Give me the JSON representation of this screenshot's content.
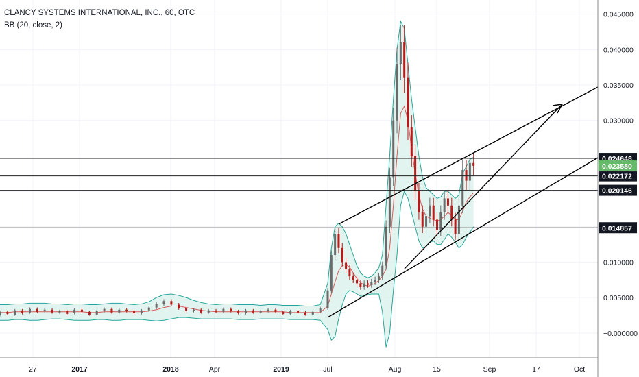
{
  "legend": {
    "symbol_line": "CLANCY SYSTEMS INTERNATIONAL, INC., 60, OTC",
    "indicator_line": "BB (20, close, 2)"
  },
  "colors": {
    "candle_up": "#6b6b6b",
    "candle_down": "#b71c1c",
    "bb_band": "#26a69a",
    "bb_fill": "#d8f0ea",
    "bb_basis": "#d65a5a",
    "drawing_line": "#000000",
    "last_price_badge": "#66bb6a",
    "axis_text": "#131722",
    "grid": "#f0f3fa"
  },
  "chart_data": {
    "type": "candlestick",
    "title": "",
    "x_axis": {
      "tick_labels": [
        "27",
        "2017",
        "2018",
        "Apr",
        "2019",
        "Jul",
        "Aug",
        "15",
        "Sep",
        "17",
        "Oct"
      ],
      "bold_ticks": [
        "2017",
        "2018",
        "2019"
      ]
    },
    "y_axis": {
      "position": "right",
      "range": [
        -0.0035,
        0.047
      ],
      "tick_values": [
        -0.0,
        0.005,
        0.01,
        0.015,
        0.02,
        0.025,
        0.03,
        0.035,
        0.04,
        0.045
      ],
      "tick_labels": [
        "−0.000000",
        "0.005000",
        "0.010000",
        "0.015000",
        "0.020000",
        "0.025000",
        "0.030000",
        "0.035000",
        "0.040000",
        "0.045000"
      ]
    },
    "grid": true,
    "series": [
      {
        "kind": "price",
        "points": [
          [
            0.0025,
            0.003
          ],
          [
            0.003,
            0.0027
          ],
          [
            0.0026,
            0.0032
          ],
          [
            0.0032,
            0.0028
          ],
          [
            0.0029,
            0.0034
          ],
          [
            0.0034,
            0.003
          ],
          [
            0.0031,
            0.0033
          ],
          [
            0.0033,
            0.0029
          ],
          [
            0.0029,
            0.0031
          ],
          [
            0.0031,
            0.0027
          ],
          [
            0.0028,
            0.0033
          ],
          [
            0.0033,
            0.003
          ],
          [
            0.003,
            0.0026
          ],
          [
            0.0026,
            0.0031
          ],
          [
            0.0031,
            0.0034
          ],
          [
            0.0034,
            0.0029
          ],
          [
            0.0029,
            0.0033
          ],
          [
            0.0033,
            0.0031
          ],
          [
            0.0031,
            0.0028
          ],
          [
            0.0028,
            0.0032
          ],
          [
            0.0032,
            0.0036
          ],
          [
            0.0036,
            0.0041
          ],
          [
            0.0041,
            0.0045
          ],
          [
            0.0045,
            0.004
          ],
          [
            0.004,
            0.0035
          ],
          [
            0.0035,
            0.0031
          ],
          [
            0.0031,
            0.0033
          ],
          [
            0.0033,
            0.0029
          ],
          [
            0.0029,
            0.0032
          ],
          [
            0.0032,
            0.003
          ],
          [
            0.003,
            0.0034
          ],
          [
            0.0034,
            0.0031
          ],
          [
            0.0031,
            0.0028
          ],
          [
            0.0028,
            0.0032
          ],
          [
            0.0032,
            0.0029
          ],
          [
            0.0029,
            0.0031
          ],
          [
            0.0031,
            0.0033
          ],
          [
            0.0033,
            0.003
          ],
          [
            0.003,
            0.0027
          ],
          [
            0.0027,
            0.0031
          ],
          [
            0.0031,
            0.0029
          ],
          [
            0.0029,
            0.0026
          ],
          [
            0.0026,
            0.003
          ],
          [
            0.003,
            0.0035
          ],
          [
            0.0035,
            0.006
          ],
          [
            0.006,
            0.011
          ],
          [
            0.011,
            0.014
          ],
          [
            0.014,
            0.012
          ],
          [
            0.012,
            0.01
          ],
          [
            0.01,
            0.009
          ],
          [
            0.009,
            0.008
          ],
          [
            0.008,
            0.0075
          ],
          [
            0.0075,
            0.007
          ],
          [
            0.007,
            0.0065
          ],
          [
            0.0065,
            0.007
          ],
          [
            0.007,
            0.0068
          ],
          [
            0.0068,
            0.0072
          ],
          [
            0.0072,
            0.0075
          ],
          [
            0.0075,
            0.008
          ],
          [
            0.008,
            0.0095
          ],
          [
            0.0095,
            0.015
          ],
          [
            0.015,
            0.022
          ],
          [
            0.022,
            0.03
          ],
          [
            0.03,
            0.038
          ],
          [
            0.038,
            0.041
          ],
          [
            0.041,
            0.036
          ],
          [
            0.036,
            0.029
          ],
          [
            0.029,
            0.025
          ],
          [
            0.025,
            0.02
          ],
          [
            0.02,
            0.017
          ],
          [
            0.017,
            0.015
          ],
          [
            0.015,
            0.0165
          ],
          [
            0.0165,
            0.018
          ],
          [
            0.018,
            0.016
          ],
          [
            0.016,
            0.0145
          ],
          [
            0.0145,
            0.017
          ],
          [
            0.017,
            0.019
          ],
          [
            0.019,
            0.018
          ],
          [
            0.018,
            0.016
          ],
          [
            0.016,
            0.014
          ],
          [
            0.014,
            0.018
          ],
          [
            0.018,
            0.023
          ],
          [
            0.023,
            0.0215
          ],
          [
            0.0215,
            0.024
          ],
          [
            0.024,
            0.0236
          ]
        ]
      },
      {
        "kind": "bollinger_bands",
        "name": "BB (20, close, 2)",
        "upper": [
          0.004,
          0.004,
          0.0041,
          0.0041,
          0.0042,
          0.0042,
          0.0042,
          0.0041,
          0.0041,
          0.004,
          0.0041,
          0.0041,
          0.004,
          0.004,
          0.0041,
          0.0042,
          0.0042,
          0.0041,
          0.004,
          0.0041,
          0.0044,
          0.005,
          0.0054,
          0.0055,
          0.0053,
          0.005,
          0.0046,
          0.0043,
          0.0041,
          0.004,
          0.0041,
          0.0041,
          0.004,
          0.004,
          0.004,
          0.0039,
          0.004,
          0.004,
          0.0039,
          0.0039,
          0.0039,
          0.0038,
          0.0038,
          0.004,
          0.007,
          0.012,
          0.015,
          0.0155,
          0.015,
          0.014,
          0.0125,
          0.011,
          0.0095,
          0.0085,
          0.008,
          0.0078,
          0.008,
          0.0085,
          0.0092,
          0.011,
          0.018,
          0.025,
          0.033,
          0.04,
          0.044,
          0.043,
          0.038,
          0.033,
          0.029,
          0.025,
          0.022,
          0.0205,
          0.02,
          0.0195,
          0.019,
          0.0192,
          0.02,
          0.02,
          0.0195,
          0.019,
          0.0195,
          0.0225,
          0.0235,
          0.0245,
          0.0248
        ],
        "lower": [
          0.0018,
          0.0018,
          0.0019,
          0.0019,
          0.0018,
          0.0018,
          0.0019,
          0.002,
          0.002,
          0.0019,
          0.0018,
          0.0018,
          0.0018,
          0.0019,
          0.0019,
          0.0018,
          0.0018,
          0.0019,
          0.0019,
          0.0019,
          0.0018,
          0.0017,
          0.0018,
          0.002,
          0.0022,
          0.0022,
          0.0021,
          0.002,
          0.002,
          0.002,
          0.002,
          0.002,
          0.0019,
          0.0019,
          0.0019,
          0.002,
          0.002,
          0.002,
          0.002,
          0.0019,
          0.0019,
          0.0019,
          0.0019,
          0.0018,
          0.0005,
          -0.001,
          -0.0005,
          0.002,
          0.004,
          0.0055,
          0.006,
          0.0058,
          0.0055,
          0.0052,
          0.0052,
          0.0054,
          0.0055,
          0.0055,
          0.0055,
          0.003,
          -0.002,
          0.0,
          0.006,
          0.011,
          0.018,
          0.02,
          0.019,
          0.017,
          0.015,
          0.013,
          0.012,
          0.0122,
          0.0128,
          0.013,
          0.0125,
          0.0125,
          0.0132,
          0.014,
          0.0135,
          0.0128,
          0.012,
          0.0125,
          0.0135,
          0.0142,
          0.015
        ],
        "basis": [
          0.0029,
          0.0029,
          0.003,
          0.003,
          0.003,
          0.003,
          0.003,
          0.003,
          0.003,
          0.003,
          0.003,
          0.003,
          0.0029,
          0.0029,
          0.003,
          0.003,
          0.003,
          0.003,
          0.003,
          0.003,
          0.0031,
          0.0033,
          0.0036,
          0.0038,
          0.0038,
          0.0036,
          0.0034,
          0.0032,
          0.0031,
          0.003,
          0.003,
          0.003,
          0.003,
          0.003,
          0.003,
          0.003,
          0.003,
          0.003,
          0.003,
          0.0029,
          0.0029,
          0.0029,
          0.0029,
          0.0029,
          0.0038,
          0.0055,
          0.0072,
          0.0088,
          0.0095,
          0.0097,
          0.0093,
          0.0085,
          0.0077,
          0.0071,
          0.0068,
          0.0066,
          0.0068,
          0.007,
          0.0074,
          0.008,
          0.009,
          0.012,
          0.018,
          0.025,
          0.031,
          0.032,
          0.03,
          0.026,
          0.0225,
          0.0195,
          0.0175,
          0.0165,
          0.0162,
          0.016,
          0.0158,
          0.016,
          0.0165,
          0.017,
          0.0166,
          0.016,
          0.016,
          0.0172,
          0.0185,
          0.0192,
          0.0198
        ]
      }
    ],
    "horizontal_levels": [
      0.024648,
      0.022172,
      0.020146,
      0.014857
    ],
    "horizontal_level_labels": [
      "0.024648",
      "0.022172",
      "0.020146",
      "0.014857"
    ],
    "last_price": 0.02358,
    "last_price_label": "0.023580",
    "trendlines": [
      {
        "from": [
          46,
          0.0035
        ],
        "to": [
          46,
          0.0035
        ]
      }
    ]
  }
}
